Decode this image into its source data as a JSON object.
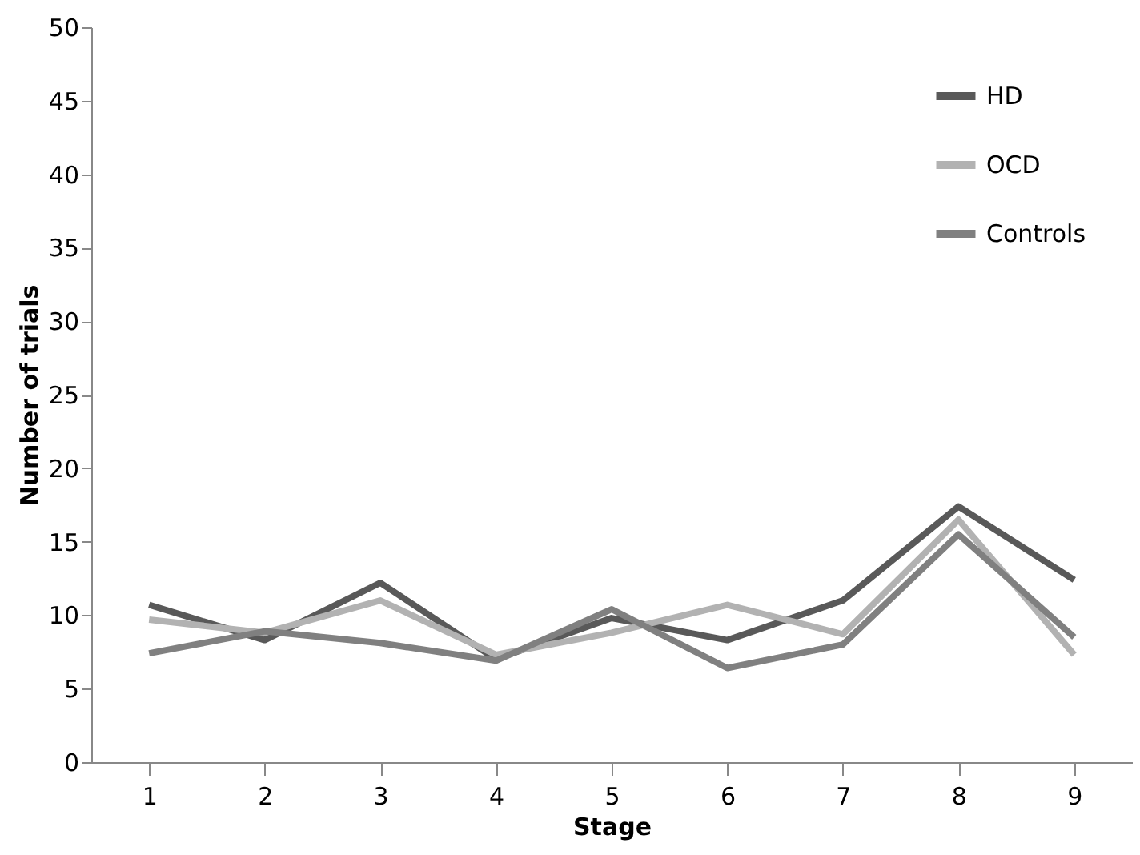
{
  "chart_data": {
    "type": "line",
    "xlabel": "Stage",
    "ylabel": "Number of trials",
    "categories": [
      "1",
      "2",
      "3",
      "4",
      "5",
      "6",
      "7",
      "8",
      "9"
    ],
    "series": [
      {
        "name": "HD",
        "color": "#595959",
        "values": [
          10.7,
          8.3,
          12.2,
          7.0,
          9.8,
          8.3,
          11.0,
          17.4,
          12.4
        ]
      },
      {
        "name": "OCD",
        "color": "#b2b2b2",
        "values": [
          9.7,
          8.8,
          11.0,
          7.3,
          8.8,
          10.7,
          8.7,
          16.5,
          7.3
        ]
      },
      {
        "name": "Controls",
        "color": "#808080",
        "values": [
          7.4,
          8.9,
          8.1,
          6.9,
          10.4,
          6.4,
          8.0,
          15.5,
          8.5
        ]
      }
    ],
    "ylim": [
      0,
      50
    ],
    "yticks": [
      0,
      5,
      10,
      15,
      20,
      25,
      30,
      35,
      40,
      45,
      50
    ],
    "grid": false,
    "legend": "top right",
    "marker": "none",
    "line_style": "solid"
  }
}
